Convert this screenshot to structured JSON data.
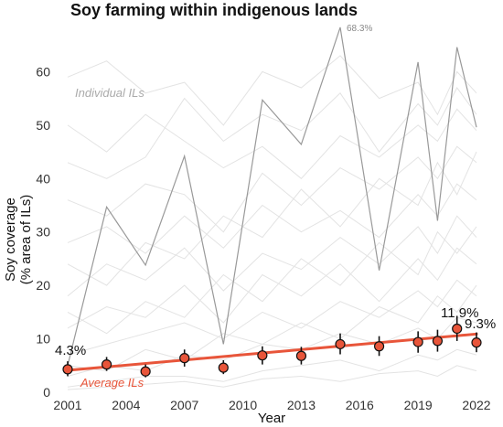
{
  "chart_data": {
    "type": "line",
    "title": "Soy farming within indigenous lands",
    "xlabel": "Year",
    "ylabel": [
      "Soy coverage",
      "(% area of ILs)"
    ],
    "xlim": [
      2001,
      2022
    ],
    "ylim": [
      0,
      70
    ],
    "x_ticks": [
      2001,
      2004,
      2007,
      2010,
      2013,
      2016,
      2019,
      2022
    ],
    "y_ticks": [
      0,
      10,
      20,
      30,
      40,
      50,
      60
    ],
    "grid": false,
    "colors": {
      "average": "#e8553a",
      "point_fill": "#e8553a",
      "highlight_line": "#999999",
      "background_lines": "#e3e3e3",
      "label_gray": "#aaaaaa"
    },
    "average_points": [
      {
        "x": 2001,
        "y": 4.3,
        "lo": 3.0,
        "hi": 5.8
      },
      {
        "x": 2003,
        "y": 5.2,
        "lo": 4.0,
        "hi": 6.6
      },
      {
        "x": 2005,
        "y": 3.9,
        "lo": 2.8,
        "hi": 5.2
      },
      {
        "x": 2007,
        "y": 6.4,
        "lo": 4.8,
        "hi": 8.0
      },
      {
        "x": 2009,
        "y": 4.6,
        "lo": 3.4,
        "hi": 6.0
      },
      {
        "x": 2011,
        "y": 6.9,
        "lo": 5.2,
        "hi": 8.6
      },
      {
        "x": 2013,
        "y": 6.8,
        "lo": 5.2,
        "hi": 8.5
      },
      {
        "x": 2015,
        "y": 9.0,
        "lo": 7.1,
        "hi": 11.0
      },
      {
        "x": 2017,
        "y": 8.6,
        "lo": 6.8,
        "hi": 10.5
      },
      {
        "x": 2019,
        "y": 9.4,
        "lo": 7.4,
        "hi": 11.4
      },
      {
        "x": 2020,
        "y": 9.6,
        "lo": 7.6,
        "hi": 11.7
      },
      {
        "x": 2021,
        "y": 11.9,
        "lo": 9.6,
        "hi": 14.2
      },
      {
        "x": 2022,
        "y": 9.3,
        "lo": 7.5,
        "hi": 11.2
      }
    ],
    "trend_line": {
      "x": [
        2001,
        2022
      ],
      "y": [
        4.1,
        10.9
      ]
    },
    "highlight_series": {
      "x": [
        2001,
        2003,
        2005,
        2007,
        2009,
        2011,
        2013,
        2015,
        2017,
        2019,
        2020,
        2021,
        2022
      ],
      "y": [
        5.0,
        34.7,
        23.8,
        44.2,
        9.0,
        54.7,
        46.4,
        68.3,
        22.8,
        61.8,
        32.1,
        64.6,
        49.6
      ]
    },
    "background_series": [
      {
        "x": [
          2001,
          2003,
          2005,
          2007,
          2009,
          2011,
          2013,
          2015,
          2017,
          2019,
          2020,
          2021,
          2022
        ],
        "y": [
          59,
          62,
          56,
          58,
          50,
          60,
          57,
          63,
          55,
          58,
          52,
          60,
          56
        ]
      },
      {
        "x": [
          2001,
          2003,
          2005,
          2007,
          2009,
          2011,
          2013,
          2015,
          2017,
          2019,
          2020,
          2021,
          2022
        ],
        "y": [
          43,
          40,
          44,
          55,
          47,
          52,
          49,
          56,
          45,
          54,
          50,
          57,
          52
        ]
      },
      {
        "x": [
          2001,
          2003,
          2005,
          2007,
          2009,
          2011,
          2013,
          2015,
          2017,
          2019,
          2020,
          2021,
          2022
        ],
        "y": [
          36,
          33,
          39,
          37,
          30,
          41,
          35,
          42,
          38,
          44,
          40,
          46,
          43
        ]
      },
      {
        "x": [
          2001,
          2003,
          2005,
          2007,
          2009,
          2011,
          2013,
          2015,
          2017,
          2019,
          2020,
          2021,
          2022
        ],
        "y": [
          28,
          31,
          26,
          33,
          27,
          35,
          30,
          34,
          29,
          37,
          33,
          39,
          36
        ]
      },
      {
        "x": [
          2001,
          2003,
          2005,
          2007,
          2009,
          2011,
          2013,
          2015,
          2017,
          2019,
          2020,
          2021,
          2022
        ],
        "y": [
          18,
          24,
          21,
          27,
          19,
          26,
          23,
          29,
          24,
          31,
          26,
          33,
          29
        ]
      },
      {
        "x": [
          2001,
          2003,
          2005,
          2007,
          2009,
          2011,
          2013,
          2015,
          2017,
          2019,
          2020,
          2021,
          2022
        ],
        "y": [
          12,
          16,
          14,
          20,
          13,
          22,
          18,
          24,
          17,
          25,
          21,
          27,
          24
        ]
      },
      {
        "x": [
          2001,
          2003,
          2005,
          2007,
          2009,
          2011,
          2013,
          2015,
          2017,
          2019,
          2020,
          2021,
          2022
        ],
        "y": [
          7,
          9,
          11,
          13,
          10,
          15,
          12,
          17,
          14,
          19,
          16,
          21,
          18
        ]
      },
      {
        "x": [
          2001,
          2003,
          2005,
          2007,
          2009,
          2011,
          2013,
          2015,
          2017,
          2019,
          2020,
          2021,
          2022
        ],
        "y": [
          3,
          5,
          4,
          7,
          6,
          9,
          8,
          11,
          9,
          12,
          10,
          14,
          13
        ]
      },
      {
        "x": [
          2001,
          2003,
          2005,
          2007,
          2009,
          2011,
          2013,
          2015,
          2017,
          2019,
          2020,
          2021,
          2022
        ],
        "y": [
          1,
          2,
          3,
          3,
          2,
          4,
          5,
          6,
          4,
          7,
          6,
          8,
          7
        ]
      },
      {
        "x": [
          2001,
          2003,
          2005,
          2007,
          2009,
          2011,
          2013,
          2015,
          2017,
          2019,
          2020,
          2021,
          2022
        ],
        "y": [
          24,
          20,
          28,
          25,
          33,
          29,
          38,
          31,
          40,
          35,
          43,
          37,
          45
        ]
      },
      {
        "x": [
          2001,
          2003,
          2005,
          2007,
          2009,
          2011,
          2013,
          2015,
          2017,
          2019,
          2020,
          2021,
          2022
        ],
        "y": [
          50,
          45,
          52,
          47,
          42,
          46,
          40,
          48,
          44,
          50,
          47,
          53,
          49
        ]
      },
      {
        "x": [
          2001,
          2003,
          2005,
          2007,
          2009,
          2011,
          2013,
          2015,
          2017,
          2019,
          2020,
          2021,
          2022
        ],
        "y": [
          15,
          11,
          17,
          14,
          22,
          17,
          25,
          20,
          28,
          22,
          30,
          26,
          31
        ]
      },
      {
        "x": [
          2001,
          2003,
          2005,
          2007,
          2009,
          2011,
          2013,
          2015,
          2017,
          2019,
          2020,
          2021,
          2022
        ],
        "y": [
          5,
          4,
          8,
          6,
          11,
          9,
          13,
          10,
          16,
          13,
          18,
          15,
          20
        ]
      },
      {
        "x": [
          2001,
          2003,
          2005,
          2007,
          2009,
          2011,
          2013,
          2015,
          2017,
          2019,
          2020,
          2021,
          2022
        ],
        "y": [
          0.5,
          1,
          1.5,
          2,
          1,
          2.5,
          3,
          2,
          3.5,
          4,
          3,
          5,
          4
        ]
      }
    ],
    "annotations": {
      "max_label": "68.3%",
      "individual_label": "Individual ILs",
      "average_label": "Average ILs",
      "start_value_label": "4.3%",
      "peak_value_label": "11.9%",
      "end_value_label": "9.3%"
    }
  }
}
